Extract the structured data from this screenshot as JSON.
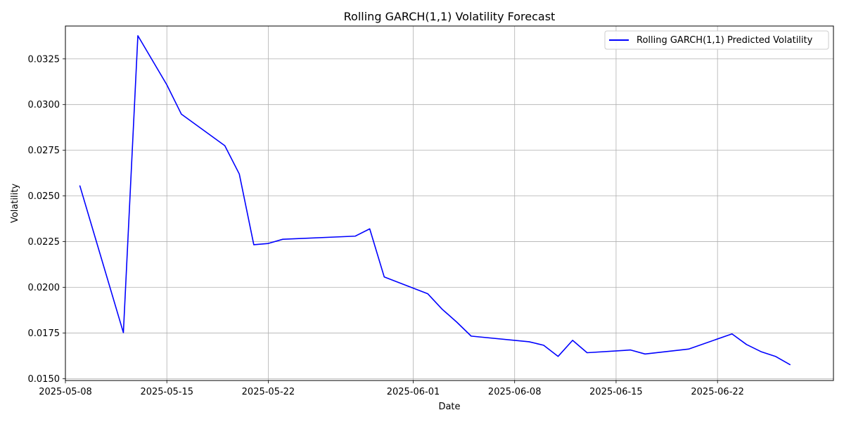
{
  "chart_data": {
    "type": "line",
    "title": "Rolling GARCH(1,1) Volatility Forecast",
    "xlabel": "Date",
    "ylabel": "Volatility",
    "grid": true,
    "legend_position": "top-right",
    "xlim": [
      "2025-05-08",
      "2025-06-30"
    ],
    "ylim": [
      0.0149,
      0.0343
    ],
    "x_ticks": [
      "2025-05-08",
      "2025-05-15",
      "2025-05-22",
      "2025-06-01",
      "2025-06-08",
      "2025-06-15",
      "2025-06-22"
    ],
    "y_ticks": [
      "0.0150",
      "0.0175",
      "0.0200",
      "0.0225",
      "0.0250",
      "0.0275",
      "0.0300",
      "0.0325"
    ],
    "series": [
      {
        "name": "Rolling GARCH(1,1) Predicted Volatility",
        "color": "#0000ff",
        "x": [
          "2025-05-09",
          "2025-05-12",
          "2025-05-13",
          "2025-05-15",
          "2025-05-16",
          "2025-05-19",
          "2025-05-20",
          "2025-05-21",
          "2025-05-22",
          "2025-05-23",
          "2025-05-28",
          "2025-05-29",
          "2025-05-30",
          "2025-06-02",
          "2025-06-03",
          "2025-06-04",
          "2025-06-05",
          "2025-06-09",
          "2025-06-10",
          "2025-06-11",
          "2025-06-12",
          "2025-06-13",
          "2025-06-16",
          "2025-06-17",
          "2025-06-20",
          "2025-06-23",
          "2025-06-24",
          "2025-06-25",
          "2025-06-26",
          "2025-06-27"
        ],
        "values": [
          0.02555,
          0.01752,
          0.03377,
          0.03108,
          0.02948,
          0.02775,
          0.0262,
          0.02233,
          0.0224,
          0.02263,
          0.0228,
          0.0232,
          0.02057,
          0.01965,
          0.0188,
          0.0181,
          0.01733,
          0.01702,
          0.01683,
          0.01622,
          0.0171,
          0.01642,
          0.01657,
          0.01635,
          0.01662,
          0.01745,
          0.01687,
          0.01648,
          0.01622,
          0.01577
        ]
      }
    ]
  }
}
